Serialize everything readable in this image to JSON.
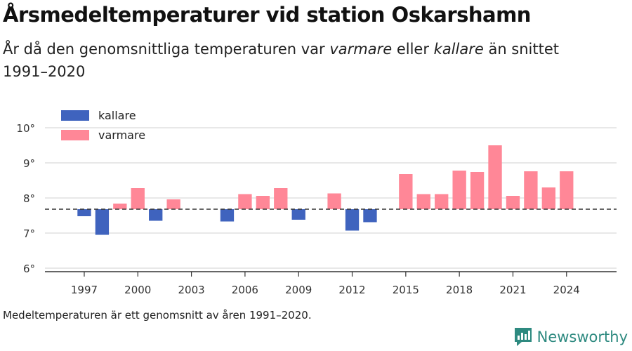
{
  "header": {
    "title": "Årsmedeltemperaturer vid station Oskarshamn",
    "subtitle_pre": "År då den genomsnittliga temperaturen var ",
    "subtitle_warm": "varmare",
    "subtitle_mid": " eller ",
    "subtitle_cold": "kallare",
    "subtitle_post": " än snittet 1991–2020"
  },
  "footer": {
    "note": "Medeltemperaturen är ett genomsnitt av åren 1991–2020.",
    "brand": "Newsworthy"
  },
  "colors": {
    "colder": "#3f63be",
    "warmer": "#ff8797",
    "grid": "#d9d9d9",
    "axis": "#333333",
    "baseline": "#333333",
    "brand": "#2e8a80"
  },
  "chart_data": {
    "type": "bar",
    "baseline": 7.68,
    "ylim": [
      5.9,
      10.4
    ],
    "xlim": [
      1994.8,
      2026.8
    ],
    "y_ticks": [
      6,
      7,
      8,
      9,
      10
    ],
    "y_tick_labels": [
      "6°",
      "7°",
      "8°",
      "9°",
      "10°"
    ],
    "x_ticks": [
      1997,
      2000,
      2003,
      2006,
      2009,
      2012,
      2015,
      2018,
      2021,
      2024
    ],
    "x_tick_labels": [
      "1997",
      "2000",
      "2003",
      "2006",
      "2009",
      "2012",
      "2015",
      "2018",
      "2021",
      "2024"
    ],
    "legend": [
      {
        "key": "colder",
        "label": "kallare"
      },
      {
        "key": "warmer",
        "label": "varmare"
      }
    ],
    "legend_position": "top-left",
    "grid": true,
    "data": [
      {
        "year": 1997,
        "value": 7.48
      },
      {
        "year": 1998,
        "value": 6.95
      },
      {
        "year": 1999,
        "value": 7.84
      },
      {
        "year": 2000,
        "value": 8.28
      },
      {
        "year": 2001,
        "value": 7.35
      },
      {
        "year": 2002,
        "value": 7.96
      },
      {
        "year": 2005,
        "value": 7.33
      },
      {
        "year": 2006,
        "value": 8.11
      },
      {
        "year": 2007,
        "value": 8.06
      },
      {
        "year": 2008,
        "value": 8.28
      },
      {
        "year": 2009,
        "value": 7.38
      },
      {
        "year": 2011,
        "value": 8.13
      },
      {
        "year": 2012,
        "value": 7.07
      },
      {
        "year": 2013,
        "value": 7.31
      },
      {
        "year": 2015,
        "value": 8.68
      },
      {
        "year": 2016,
        "value": 8.11
      },
      {
        "year": 2017,
        "value": 8.11
      },
      {
        "year": 2018,
        "value": 8.78
      },
      {
        "year": 2019,
        "value": 8.74
      },
      {
        "year": 2020,
        "value": 9.5
      },
      {
        "year": 2021,
        "value": 8.06
      },
      {
        "year": 2022,
        "value": 8.76
      },
      {
        "year": 2023,
        "value": 8.3
      },
      {
        "year": 2024,
        "value": 8.76
      }
    ]
  }
}
